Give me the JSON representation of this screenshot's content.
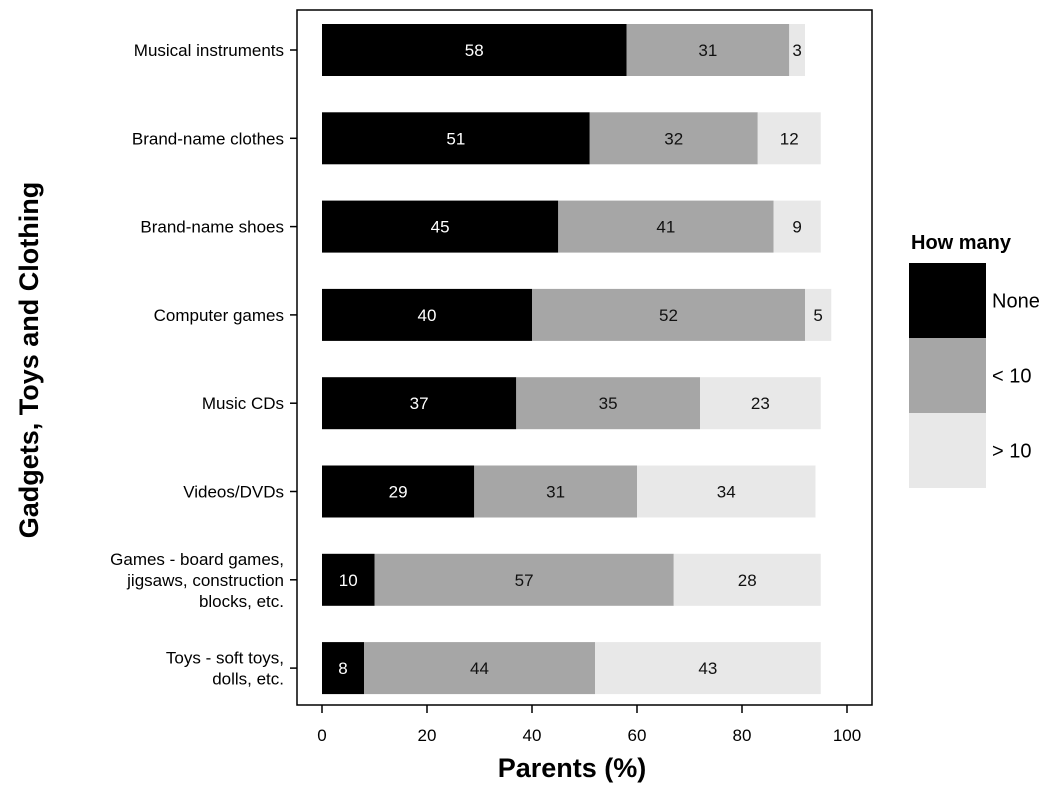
{
  "chart_data": {
    "type": "bar",
    "orientation": "horizontal",
    "stacked": true,
    "categories": [
      "Musical instruments",
      "Brand-name clothes",
      "Brand-name shoes",
      "Computer games",
      "Music CDs",
      "Videos/DVDs",
      "Games - board games, jigsaws, construction blocks, etc.",
      "Toys - soft toys, dolls, etc."
    ],
    "category_lines": [
      [
        "Musical instruments"
      ],
      [
        "Brand-name clothes"
      ],
      [
        "Brand-name shoes"
      ],
      [
        "Computer games"
      ],
      [
        "Music CDs"
      ],
      [
        "Videos/DVDs"
      ],
      [
        "Games - board games,",
        "jigsaws, construction",
        "blocks, etc."
      ],
      [
        "Toys - soft toys,",
        "dolls, etc."
      ]
    ],
    "series": [
      {
        "name": "None",
        "color": "#000000",
        "label_color": "#ffffff",
        "values": [
          58,
          51,
          45,
          40,
          37,
          29,
          10,
          8
        ]
      },
      {
        "name": "< 10",
        "color": "#a6a6a6",
        "label_color": "#111111",
        "values": [
          31,
          32,
          41,
          52,
          35,
          31,
          57,
          44
        ]
      },
      {
        "name": "> 10",
        "color": "#e8e8e8",
        "label_color": "#111111",
        "values": [
          3,
          12,
          9,
          5,
          23,
          34,
          28,
          43
        ]
      }
    ],
    "xlabel": "Parents (%)",
    "ylabel": "Gadgets, Toys and Clothing",
    "xlim": [
      0,
      100
    ],
    "xticks": [
      0,
      20,
      40,
      60,
      80,
      100
    ],
    "legend": {
      "title": "How many",
      "position": "right"
    },
    "grid": false
  }
}
